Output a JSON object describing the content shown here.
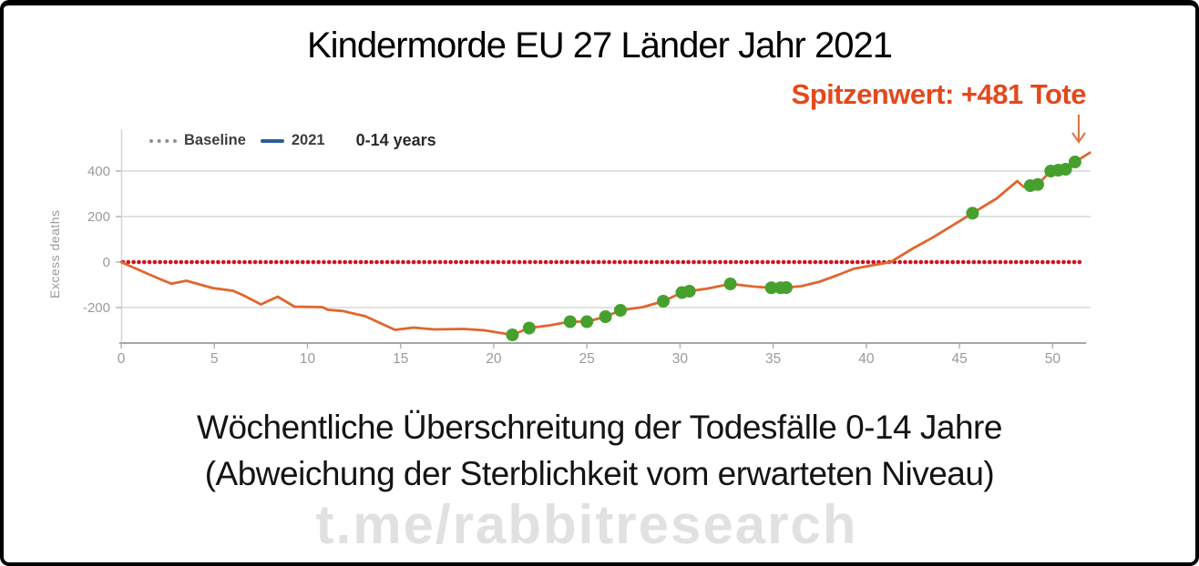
{
  "title": "Kindermorde EU 27 Länder Jahr 2021",
  "annotation": {
    "peak_label": "Spitzenwert: +481 Tote"
  },
  "legend": {
    "baseline_label": "Baseline",
    "year_label": "2021",
    "age_label": "0-14 years"
  },
  "y_axis_label": "Excess deaths",
  "caption": {
    "line1": "Wöchentliche Überschreitung der Todesfälle 0-14 Jahre",
    "line2": "(Abweichung der Sterblichkeit vom erwarteten Niveau)"
  },
  "watermark": "t.me/rabbitresearch",
  "colors": {
    "line_2021": "#e0662f",
    "baseline_red": "#ce1320",
    "highlight_green": "#47a02e",
    "legend_blue": "#2b5d9b",
    "annotation_orange": "#e2491c",
    "grid": "#d9d9d9",
    "axis": "#a6a6a6",
    "tick_text": "#9a9a9a"
  },
  "chart_data": {
    "type": "line",
    "title": "Kindermorde EU 27 Länder Jahr 2021",
    "xlabel": "",
    "ylabel": "Excess deaths",
    "x_ticks": [
      0,
      5,
      10,
      15,
      20,
      25,
      30,
      35,
      40,
      45,
      50
    ],
    "y_ticks": [
      -200,
      0,
      200,
      400
    ],
    "xlim": [
      0,
      52
    ],
    "ylim": [
      -352,
      560
    ],
    "grid": true,
    "legend_position": "top-left",
    "baseline": {
      "name": "Baseline",
      "value": 0,
      "style": "dotted"
    },
    "series": [
      {
        "name": "2021",
        "points": [
          [
            0,
            0
          ],
          [
            0.6,
            -22
          ],
          [
            2,
            -72
          ],
          [
            2.7,
            -95
          ],
          [
            3.5,
            -82
          ],
          [
            4.9,
            -114
          ],
          [
            6,
            -126
          ],
          [
            6.6,
            -148
          ],
          [
            7.5,
            -186
          ],
          [
            8.4,
            -152
          ],
          [
            9.3,
            -196
          ],
          [
            10.8,
            -198
          ],
          [
            11.1,
            -210
          ],
          [
            11.9,
            -215
          ],
          [
            13.1,
            -238
          ],
          [
            14.7,
            -298
          ],
          [
            15.7,
            -288
          ],
          [
            16.8,
            -296
          ],
          [
            18.4,
            -294
          ],
          [
            19.5,
            -300
          ],
          [
            21,
            -320
          ],
          [
            21.9,
            -290
          ],
          [
            23,
            -278
          ],
          [
            24.1,
            -262
          ],
          [
            25,
            -262
          ],
          [
            26,
            -240
          ],
          [
            26.8,
            -212
          ],
          [
            28,
            -198
          ],
          [
            29.1,
            -172
          ],
          [
            30.1,
            -134
          ],
          [
            30.5,
            -128
          ],
          [
            31.5,
            -116
          ],
          [
            32.7,
            -96
          ],
          [
            34,
            -108
          ],
          [
            34.9,
            -113
          ],
          [
            35.4,
            -113
          ],
          [
            35.7,
            -112
          ],
          [
            36.5,
            -106
          ],
          [
            37.5,
            -86
          ],
          [
            38.5,
            -56
          ],
          [
            39.3,
            -30
          ],
          [
            40.2,
            -16
          ],
          [
            41.3,
            0
          ],
          [
            42.5,
            60
          ],
          [
            43.5,
            105
          ],
          [
            44.5,
            155
          ],
          [
            45.7,
            215
          ],
          [
            47,
            280
          ],
          [
            48.1,
            356
          ],
          [
            48.45,
            330
          ],
          [
            48.8,
            336
          ],
          [
            49.2,
            341
          ],
          [
            49.9,
            400
          ],
          [
            50.3,
            404
          ],
          [
            50.7,
            408
          ],
          [
            51.2,
            440
          ],
          [
            52,
            481
          ]
        ]
      }
    ],
    "highlight_points": {
      "name": "green-dots",
      "points": [
        [
          21,
          -320
        ],
        [
          21.9,
          -290
        ],
        [
          24.1,
          -262
        ],
        [
          25,
          -262
        ],
        [
          26,
          -240
        ],
        [
          26.8,
          -212
        ],
        [
          29.1,
          -172
        ],
        [
          30.1,
          -134
        ],
        [
          30.5,
          -128
        ],
        [
          32.7,
          -96
        ],
        [
          34.9,
          -113
        ],
        [
          35.4,
          -113
        ],
        [
          35.7,
          -112
        ],
        [
          45.7,
          215
        ],
        [
          48.8,
          336
        ],
        [
          49.2,
          341
        ],
        [
          49.9,
          400
        ],
        [
          50.3,
          404
        ],
        [
          50.7,
          408
        ],
        [
          51.2,
          440
        ]
      ]
    },
    "peak": {
      "label": "Spitzenwert: +481 Tote",
      "week": 52,
      "value": 481
    }
  }
}
